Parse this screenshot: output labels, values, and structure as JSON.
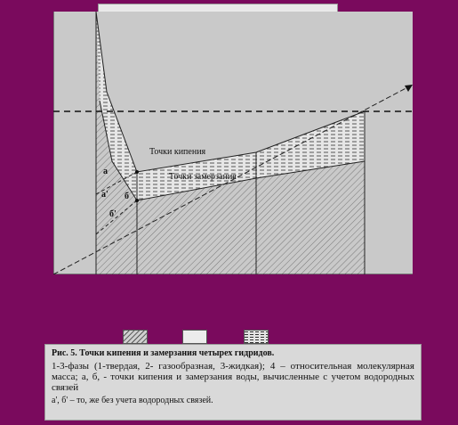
{
  "diagram": {
    "labels": {
      "boiling": "Точки кипения",
      "freezing": "Точки замерзания",
      "a": "а",
      "a_prime": "а'",
      "b": "б",
      "b_prime": "б'"
    }
  },
  "legend": [
    {
      "pattern": "diagonal-hatch",
      "meaning": "1 - твердая"
    },
    {
      "pattern": "plain",
      "meaning": "2 - газообразная"
    },
    {
      "pattern": "dashed-hatch",
      "meaning": "3 - жидкая"
    }
  ],
  "caption": {
    "title": "Рис. 5. Точки кипения и замерзания четырех гидридов.",
    "body": "1-3-фазы (1-твердая, 2- газообразная, 3-жидкая); 4 – относительная молекулярная масса; а, б, - точки кипения и замерзания воды, вычисленные с учетом водородных связей",
    "note": "а', б' – то, же без учета водородных связей."
  },
  "colors": {
    "background": "#7a0a5d",
    "plot_background": "#c9c9c9",
    "caption_background": "#d9d9d9"
  }
}
